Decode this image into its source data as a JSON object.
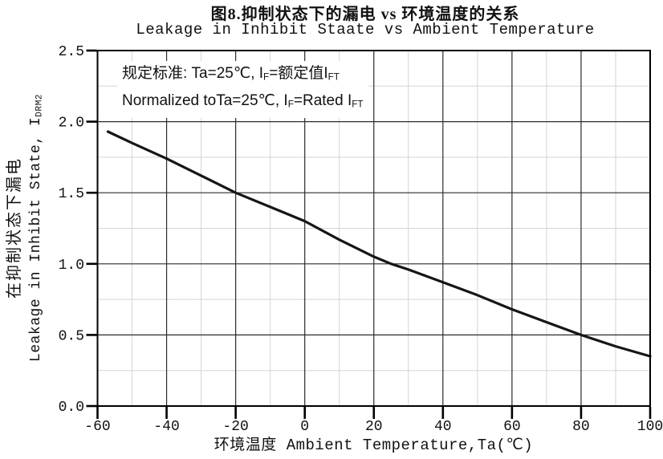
{
  "chart_data": {
    "type": "line",
    "title_zh": "图8.抑制状态下的漏电 vs 环境温度的关系",
    "title_en": "Leakage in Inhibit Staate vs Ambient Temperature",
    "x_axis": {
      "label": "环境温度 Ambient Temperature,Ta(℃)",
      "ticks": [
        "-60",
        "-40",
        "-20",
        "0",
        "20",
        "40",
        "60",
        "80",
        "100"
      ],
      "min": -60,
      "max": 100,
      "major_step": 20,
      "minor_step": 10
    },
    "y_axis": {
      "label_zh": "在抑制状态下漏电",
      "label_en_segments": [
        {
          "text": "Leakage in Inhibit State, I"
        },
        {
          "text": "DRM2",
          "sub": true
        }
      ],
      "ticks": [
        "0.0",
        "0.5",
        "1.0",
        "1.5",
        "2.0",
        "2.5"
      ],
      "min": 0,
      "max": 2.5,
      "major_step": 0.5,
      "minor_step": 0.25
    },
    "annotation": {
      "lines": [
        [
          {
            "text": "规定标准: Ta=25℃, I"
          },
          {
            "text": "F",
            "sub": true
          },
          {
            "text": "=额定值I"
          },
          {
            "text": "FT",
            "sub": true
          }
        ],
        [
          {
            "text": "Normalized toTa=25℃, I"
          },
          {
            "text": "F",
            "sub": true
          },
          {
            "text": "=Rated I"
          },
          {
            "text": "FT",
            "sub": true
          }
        ]
      ]
    },
    "grid": {
      "major": true,
      "minor": true
    },
    "legend": "none",
    "series": [
      {
        "name": "normalized-leakage-curve",
        "x": [
          -57,
          -50,
          -40,
          -30,
          -20,
          -10,
          0,
          10,
          20,
          25,
          30,
          40,
          50,
          60,
          70,
          80,
          90,
          100
        ],
        "y": [
          1.93,
          1.85,
          1.74,
          1.62,
          1.5,
          1.4,
          1.3,
          1.17,
          1.05,
          1.0,
          0.96,
          0.87,
          0.78,
          0.68,
          0.59,
          0.5,
          0.42,
          0.35
        ]
      }
    ],
    "colors": {
      "curve": "#161616",
      "major_grid": "#2b2b2b",
      "minor_grid": "#d4d4d4",
      "frame": "#000000",
      "tick": "#000000",
      "background": "#ffffff"
    }
  }
}
